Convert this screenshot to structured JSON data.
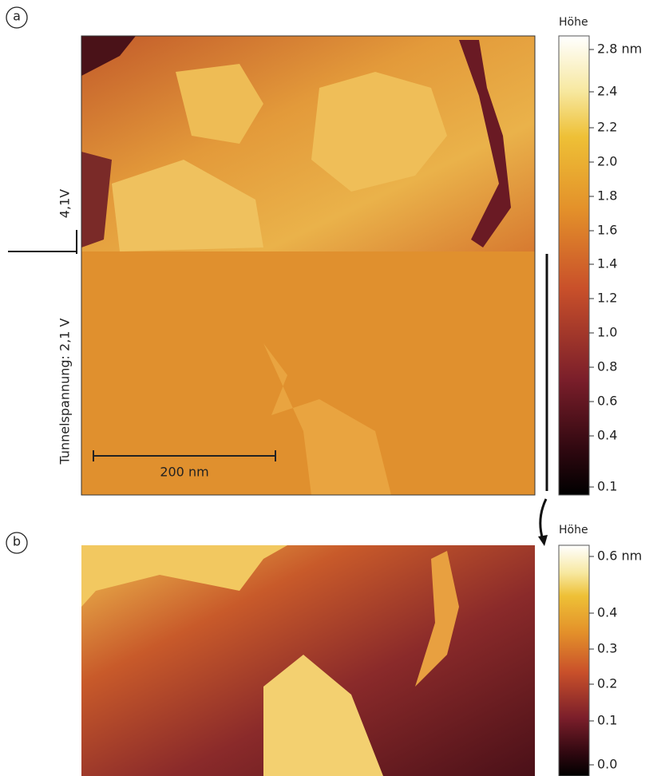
{
  "panel_a": {
    "label": "a",
    "voltage_top": "4,1V",
    "voltage_bottom": "Tunnelspannung: 2,1 V",
    "scale_bar": "200 nm",
    "colorbar": {
      "title": "Höhe",
      "ticks": [
        "2.8 nm",
        "2.4",
        "2.2",
        "2.0",
        "1.8",
        "1.6",
        "1.4",
        "1.2",
        "1.0",
        "0.8",
        "0.6",
        "0.4",
        "0.1"
      ]
    }
  },
  "panel_b": {
    "label": "b",
    "colorbar": {
      "title": "Höhe",
      "ticks": [
        "0.6 nm",
        "0.4",
        "0.3",
        "0.2",
        "0.1",
        "0.0"
      ]
    }
  }
}
